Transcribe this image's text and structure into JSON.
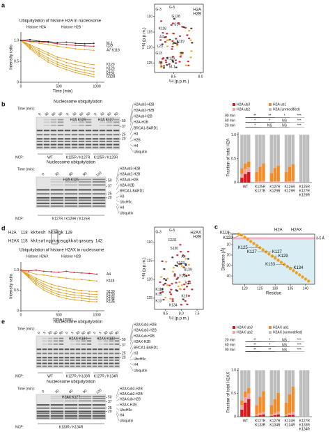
{
  "panel_a": {
    "label": "a",
    "plot": {
      "type": "line",
      "title": "Ubiquitylation of histone H2A in nucleosome",
      "legend": [
        {
          "name": "Histone H2A",
          "color": "#e0a020"
        },
        {
          "name": "Histone H2B",
          "color": "#d0202a"
        }
      ],
      "xlabel": "Time (min)",
      "ylabel": "Intensity ratio",
      "xlim": [
        0,
        1100
      ],
      "ylim": [
        0,
        1.2
      ],
      "xticks": [
        0,
        500,
        1000
      ],
      "yticks": [
        0,
        0.5,
        {
          "value": 1,
          "label": "1.0"
        }
      ],
      "x": [
        0,
        120,
        240,
        360,
        480,
        600,
        720,
        840,
        960
      ],
      "series": [
        {
          "name": "M-1",
          "color": "#222222",
          "values": [
            1,
            1.02,
            0.98,
            0.97,
            0.95,
            0.96,
            0.93,
            0.92,
            0.93
          ]
        },
        {
          "name": "Q22",
          "color": "#d0202a",
          "values": [
            1,
            0.98,
            0.97,
            0.95,
            0.92,
            0.9,
            0.88,
            0.87,
            0.86
          ]
        },
        {
          "name": "A7 K118",
          "color": "#e0a020",
          "values": [
            1,
            0.97,
            0.93,
            0.9,
            0.86,
            0.83,
            0.8,
            0.78,
            0.76
          ]
        },
        {
          "name": "K129",
          "color": "#e0a020",
          "values": [
            1,
            0.9,
            0.8,
            0.7,
            0.6,
            0.55,
            0.5,
            0.45,
            0.42
          ]
        },
        {
          "name": "K126",
          "color": "#e0a020",
          "values": [
            1,
            0.88,
            0.75,
            0.65,
            0.55,
            0.47,
            0.42,
            0.37,
            0.33
          ]
        },
        {
          "name": "K127",
          "color": "#e0a020",
          "values": [
            1,
            0.85,
            0.7,
            0.58,
            0.48,
            0.4,
            0.34,
            0.29,
            0.25
          ]
        },
        {
          "name": "K125",
          "color": "#e0a020",
          "values": [
            1,
            0.82,
            0.66,
            0.53,
            0.43,
            0.35,
            0.28,
            0.23,
            0.19
          ]
        },
        {
          "name": "G128",
          "color": "#e0a020",
          "values": [
            1,
            0.8,
            0.62,
            0.48,
            0.38,
            0.3,
            0.23,
            0.18,
            0.13
          ]
        }
      ]
    },
    "nmr": {
      "xlabel": "¹H (p.p.m.)",
      "ylabel": "¹⁵N (p.p.m.)",
      "xlim": [
        8.85,
        7.95
      ],
      "ylim": [
        106,
        128
      ],
      "xticks": [
        8.5,
        {
          "value": 8,
          "label": "8.0"
        }
      ],
      "yticks": [
        110,
        115,
        120,
        125
      ],
      "legend": [
        {
          "name": "H2A",
          "color": "#e0a020"
        },
        {
          "name": "H2B",
          "color": "#d0202a"
        }
      ],
      "labels": [
        "G-3",
        "G-5",
        "G128",
        "S14",
        "K118",
        "A7",
        "K119",
        "L23",
        "G13",
        "K129",
        "A6",
        "M-1"
      ]
    }
  },
  "panel_b": {
    "label": "b",
    "gel1": {
      "title": "Nucleosome ubiquitylation",
      "time_label": "Time (min):",
      "times": [
        0,
        30,
        60,
        90,
        0,
        30,
        60,
        90,
        0,
        30,
        60,
        90
      ],
      "highlights": [
        "H2A K129",
        "H2A K127"
      ],
      "markers": [
        50,
        37,
        25,
        20
      ],
      "bands": [
        "H2Aub3-H2B",
        "H2Aub2-H2B",
        "H2Aub-H2B",
        "H2A-H2B",
        "BRCA1-BARD1",
        "H3",
        "H2B",
        "H4",
        "Ubiquitin"
      ],
      "ncp_label": "NCP:",
      "ncp": [
        "WT",
        "K125R / K127R",
        "K125R / K129R"
      ]
    },
    "gel2": {
      "title": "Nucleosome ubiquitylation",
      "time_label": "Time (min):",
      "times": [
        0,
        30,
        60,
        90,
        120
      ],
      "highlights": [
        "H2A K125"
      ],
      "markers": [
        50,
        37,
        25,
        20
      ],
      "bands": [
        "H2Aub3-H2B",
        "H2Aub2-H2B",
        "H2Aub-H2B",
        "H2A-H2B",
        "BRCA1-BARD1",
        "H3",
        "UbcH5c",
        "H4",
        "Ubiquitin"
      ],
      "ncp_label": "NCP:",
      "ncp": [
        "K127R / K129R / K125R"
      ]
    },
    "bars": {
      "type": "stacked_bar",
      "ylabel": "Fraction of total H2A",
      "ylim": [
        0,
        1.05
      ],
      "yticks": [
        0,
        0.5,
        {
          "value": 1,
          "label": "1.0"
        }
      ],
      "groups": [
        [
          "WT"
        ],
        [
          "K125R",
          "K127R"
        ],
        [
          "K127R",
          "K129R"
        ],
        [
          "K125R",
          "K129R"
        ],
        [
          "K125R",
          "K127R",
          "K129R"
        ]
      ],
      "series": [
        {
          "name": "H2A ub3",
          "color": "#d7191c",
          "values": [
            0.1,
            0.18,
            0.22,
            0,
            0,
            0,
            0,
            0,
            0,
            0,
            0,
            0,
            0,
            0,
            0
          ]
        },
        {
          "name": "H2A ub2",
          "color": "#f4a3a0",
          "values": [
            0.08,
            0.1,
            0.1,
            0.02,
            0.03,
            0.04,
            0.02,
            0.03,
            0.03,
            0.02,
            0.03,
            0.04,
            0,
            0,
            0
          ]
        },
        {
          "name": "H2A ub1",
          "color": "#f28c28",
          "values": [
            0.12,
            0.12,
            0.12,
            0.2,
            0.3,
            0.36,
            0.18,
            0.28,
            0.32,
            0.2,
            0.3,
            0.35,
            0,
            0,
            0
          ]
        },
        {
          "name": "H2A (unmodified)",
          "color": "#bdbdbd",
          "values": [
            0.7,
            0.6,
            0.56,
            0.78,
            0.67,
            0.6,
            0.8,
            0.69,
            0.65,
            0.78,
            0.67,
            0.61,
            1,
            1,
            1
          ]
        }
      ],
      "significance": [
        {
          "label": "90 min",
          "marks": [
            "**",
            "**",
            "*",
            "***"
          ]
        },
        {
          "label": "60 min",
          "marks": [
            "*",
            "*",
            "NS",
            "***"
          ]
        },
        {
          "label": "20 min",
          "marks": [
            "*",
            "NS",
            "NS",
            "***"
          ]
        }
      ]
    }
  },
  "panel_c": {
    "label": "c",
    "type": "scatter",
    "xlabel": "Residue",
    "ylabel": "Distance (Å)",
    "legend": [
      {
        "name": "H2A",
        "color": "#e0a020"
      },
      {
        "name": "H2AX",
        "color": "#e0a020"
      }
    ],
    "band": [
      3,
      5
    ],
    "band_label": "3-5 Å",
    "xlim": [
      116,
      143
    ],
    "ylim": [
      0,
      48
    ],
    "xticks": [
      120,
      125,
      130,
      135,
      140
    ],
    "yticks": [
      0,
      10,
      20,
      30,
      40
    ],
    "color": "#f0a020",
    "x": [
      118,
      119,
      120,
      121,
      122,
      123,
      124,
      125,
      126,
      127,
      128,
      129,
      130,
      131,
      132,
      133,
      134,
      135,
      136,
      137,
      138,
      139,
      140,
      141
    ],
    "y": [
      0,
      1,
      3,
      5,
      7,
      9,
      11,
      13,
      15,
      17,
      19,
      21,
      23,
      25,
      27,
      29,
      31,
      33,
      35,
      37,
      39,
      41,
      43,
      45
    ],
    "annotations": [
      {
        "text": "K118",
        "x": 118,
        "y": 0
      },
      {
        "text": "K119",
        "x": 119,
        "y": 1
      },
      {
        "text": "K125",
        "x": 125,
        "y": 13
      },
      {
        "text": "K127",
        "x": 127,
        "y": 17
      },
      {
        "text": "K127",
        "x": 127,
        "y": 17
      },
      {
        "text": "K129",
        "x": 129,
        "y": 21
      },
      {
        "text": "K133",
        "x": 133,
        "y": 29
      },
      {
        "text": "K134",
        "x": 134,
        "y": 31
      }
    ]
  },
  "panel_d": {
    "label": "d",
    "sequence": [
      {
        "name": "H2A",
        "start": 118,
        "seq": "kktesh hkakgk",
        "end": 129
      },
      {
        "name": "H2AX",
        "start": 118,
        "seq": "kktsatvgpkapsggkkatqasqey",
        "end": 142
      }
    ],
    "plot": {
      "type": "line",
      "title": "Ubiquitylation of histone H2AX in nucleosome",
      "legend": [
        {
          "name": "Histone H2AX",
          "color": "#e0a020"
        },
        {
          "name": "Histone H2B",
          "color": "#d0202a"
        }
      ],
      "xlabel": "Time (min)",
      "ylabel": "Intensity ratio",
      "xlim": [
        0,
        1100
      ],
      "ylim": [
        0,
        1.2
      ],
      "xticks": [
        0,
        500,
        1000
      ],
      "yticks": [
        0,
        0.5,
        {
          "value": 1,
          "label": "1.0"
        }
      ],
      "x": [
        0,
        100,
        200,
        300,
        400,
        500,
        600,
        700,
        800,
        900,
        1000
      ],
      "series": [
        {
          "name": "A4",
          "color": "#d0202a",
          "values": [
            1,
            0.98,
            1,
            0.97,
            0.96,
            0.95,
            0.97,
            0.94,
            0.93,
            0.92,
            0.9
          ]
        },
        {
          "name": "K118",
          "color": "#e0a020",
          "values": [
            1,
            0.95,
            0.9,
            0.88,
            0.85,
            0.82,
            0.8,
            0.78,
            0.77,
            0.75,
            0.73
          ]
        },
        {
          "name": "S130",
          "color": "#e0a020",
          "values": [
            1,
            0.9,
            0.8,
            0.72,
            0.65,
            0.6,
            0.56,
            0.52,
            0.5,
            0.48,
            0.47
          ]
        },
        {
          "name": "K130",
          "color": "#e0a020",
          "values": [
            1,
            0.88,
            0.76,
            0.66,
            0.58,
            0.53,
            0.49,
            0.45,
            0.43,
            0.41,
            0.4
          ]
        },
        {
          "name": "K133",
          "color": "#e0a020",
          "values": [
            1,
            0.86,
            0.72,
            0.61,
            0.52,
            0.46,
            0.42,
            0.39,
            0.37,
            0.35,
            0.34
          ]
        },
        {
          "name": "K134",
          "color": "#e0a020",
          "values": [
            1,
            0.84,
            0.68,
            0.56,
            0.47,
            0.4,
            0.36,
            0.33,
            0.31,
            0.29,
            0.28
          ]
        },
        {
          "name": "K136",
          "color": "#e0a020",
          "values": [
            1,
            0.82,
            0.64,
            0.51,
            0.42,
            0.35,
            0.3,
            0.27,
            0.25,
            0.23,
            0.22
          ]
        }
      ]
    },
    "nmr": {
      "xlabel": "¹H (p.p.m.)",
      "ylabel": "¹⁵N (p.p.m.)",
      "xlim": [
        8.85,
        7.3
      ],
      "ylim": [
        106,
        128
      ],
      "xticks": [
        8.5,
        {
          "value": 8,
          "label": "8.0"
        },
        7.5
      ],
      "yticks": [
        110,
        115,
        120,
        125
      ],
      "legend": [
        {
          "name": "H2AX",
          "color": "#e0a020"
        },
        {
          "name": "H2B",
          "color": "#d0202a"
        }
      ],
      "labels": [
        "G-3",
        "G-5",
        "G131",
        "S130",
        "A4",
        "K133",
        "S139",
        "Y19",
        "S14",
        "K118",
        "K15",
        "K16",
        "K13",
        "K134"
      ]
    }
  },
  "panel_e": {
    "label": "e",
    "gel1": {
      "title": "Nucleosome ubiquitylation",
      "time_label": "Time (min):",
      "times": [
        0,
        5,
        30,
        60,
        90,
        0,
        5,
        30,
        60,
        90,
        0,
        5,
        30,
        60,
        90
      ],
      "highlights": [
        "H2AX K134",
        "H2AX K133"
      ],
      "markers": [
        50,
        37,
        25,
        20
      ],
      "bands": [
        "H2AXub3-H2B",
        "H2AXub2-H2B",
        "H2AXub-H2B",
        "H2AX-H2B",
        "BRCA1-BARD1",
        "H3",
        "UbcH5c",
        "H4",
        "Ubiquitin"
      ],
      "ncp_label": "NCP:",
      "ncp": [
        "WT",
        "K127R / K133R",
        "K127R / K134R"
      ]
    },
    "gel2": {
      "title": "Nucleosome ubiquitylation",
      "time_label": "Time (min):",
      "times": [
        0,
        30,
        60,
        90,
        120
      ],
      "highlights": [
        "H2AX K127"
      ],
      "markers": [
        50,
        37,
        25,
        20
      ],
      "bands": [
        "H2AXub3-H2B",
        "H2AXub2-H2B",
        "H2AXub-H2B",
        "H2AX-H2B",
        "UbcH5c",
        "H4",
        "Ubiquitin"
      ],
      "ncp_label": "NCP:",
      "ncp": [
        "K133R / K134R"
      ]
    },
    "bars": {
      "type": "stacked_bar",
      "ylabel": "Fraction of total H2AX",
      "ylim": [
        0,
        1.05
      ],
      "yticks": [
        0,
        0.5,
        {
          "value": 1,
          "label": "1.0"
        }
      ],
      "groups": [
        [
          "WT"
        ],
        [
          "K127R",
          "K133R"
        ],
        [
          "K127R",
          "K134R"
        ],
        [
          "K133R",
          "K134R"
        ],
        [
          "K127R",
          "K133R",
          "K134R"
        ]
      ],
      "series": [
        {
          "name": "H2AX ub3",
          "color": "#d7191c",
          "values": [
            0.15,
            0.3,
            0.38,
            0.02,
            0.03,
            0.05,
            0.02,
            0.03,
            0.05,
            0.02,
            0.03,
            0.04,
            0,
            0,
            0
          ]
        },
        {
          "name": "H2AX ub2",
          "color": "#f4a3a0",
          "values": [
            0.1,
            0.12,
            0.12,
            0.03,
            0.05,
            0.05,
            0.03,
            0.05,
            0.06,
            0.03,
            0.05,
            0.06,
            0,
            0,
            0
          ]
        },
        {
          "name": "H2AX ub1",
          "color": "#f28c28",
          "values": [
            0.1,
            0.12,
            0.12,
            0.2,
            0.35,
            0.45,
            0.2,
            0.3,
            0.4,
            0.25,
            0.4,
            0.55,
            0,
            0,
            0
          ]
        },
        {
          "name": "H2AX (unmodified)",
          "color": "#bdbdbd",
          "values": [
            0.65,
            0.46,
            0.38,
            0.75,
            0.57,
            0.45,
            0.75,
            0.62,
            0.49,
            0.7,
            0.52,
            0.35,
            1,
            1,
            1
          ]
        }
      ],
      "significance": [
        {
          "label": "20 min",
          "marks": [
            "**",
            "*",
            "NS",
            "***"
          ]
        },
        {
          "label": "60 min",
          "marks": [
            "**",
            "*",
            "NS",
            "***"
          ]
        },
        {
          "label": "90 min",
          "marks": [
            "**",
            "**",
            "NS",
            "***"
          ]
        }
      ]
    }
  }
}
